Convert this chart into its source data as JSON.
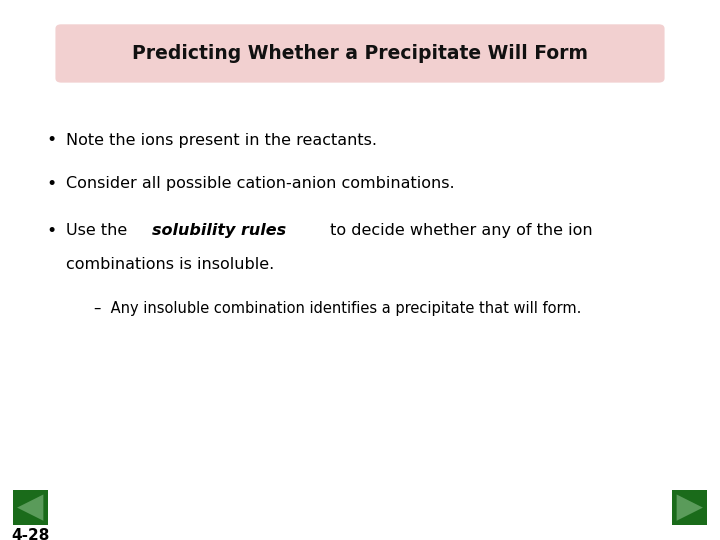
{
  "title": "Predicting Whether a Precipitate Will Form",
  "title_fontsize": 13.5,
  "title_bg_color": "#f2d0d0",
  "title_text_color": "#111111",
  "background_color": "#ffffff",
  "sub_bullet": "Any insoluble combination identifies a precipitate that will form.",
  "label_text": "4-28",
  "label_fontsize": 11,
  "green_color": "#1a6b1a",
  "body_fontsize": 11.5,
  "bullet1": "Note the ions present in the reactants.",
  "bullet2": "Consider all possible cation-anion combinations.",
  "bullet3a_pre": "Use the ",
  "bullet3a_bold": "solubility rules",
  "bullet3a_post": " to decide whether any of the ion",
  "bullet3b": "combinations is insoluble.",
  "sub_dash": "–",
  "sub_text": "Any insoluble combination identifies a precipitate that will form."
}
